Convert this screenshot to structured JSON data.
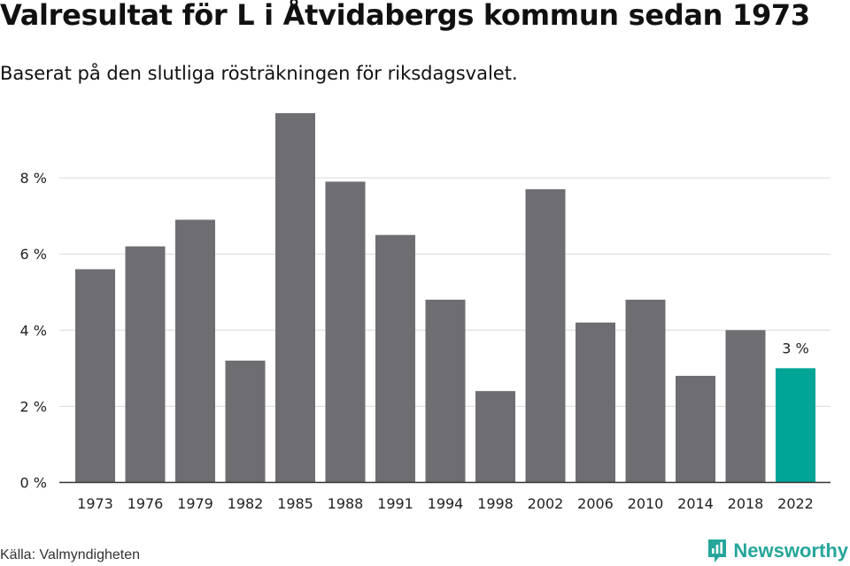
{
  "title": "Valresultat för L i Åtvidabergs kommun sedan 1973",
  "subtitle": "Baserat på den slutliga rösträkningen för riksdagsvalet.",
  "source": "Källa: Valmyndigheten",
  "brand": "Newsworthy",
  "colors": {
    "bar": "#6e6d72",
    "highlight": "#00a597",
    "grid": "#d9d9d9",
    "axis": "#333333",
    "brand": "#26a69a"
  },
  "chart_data": {
    "type": "bar",
    "categories": [
      "1973",
      "1976",
      "1979",
      "1982",
      "1985",
      "1988",
      "1991",
      "1994",
      "1998",
      "2002",
      "2006",
      "2010",
      "2014",
      "2018",
      "2022"
    ],
    "values": [
      5.6,
      6.2,
      6.9,
      3.2,
      9.7,
      7.9,
      6.5,
      4.8,
      2.4,
      7.7,
      4.2,
      4.8,
      2.8,
      4.0,
      3.0
    ],
    "y_ticks": [
      0,
      2,
      4,
      6,
      8
    ],
    "y_tick_labels": [
      "0 %",
      "2 %",
      "4 %",
      "6 %",
      "8 %"
    ],
    "ylim": [
      0,
      10
    ],
    "unit": "%",
    "highlight_index": 14,
    "highlight_label": "3 %",
    "grid": true,
    "xlabel": "",
    "ylabel": ""
  }
}
